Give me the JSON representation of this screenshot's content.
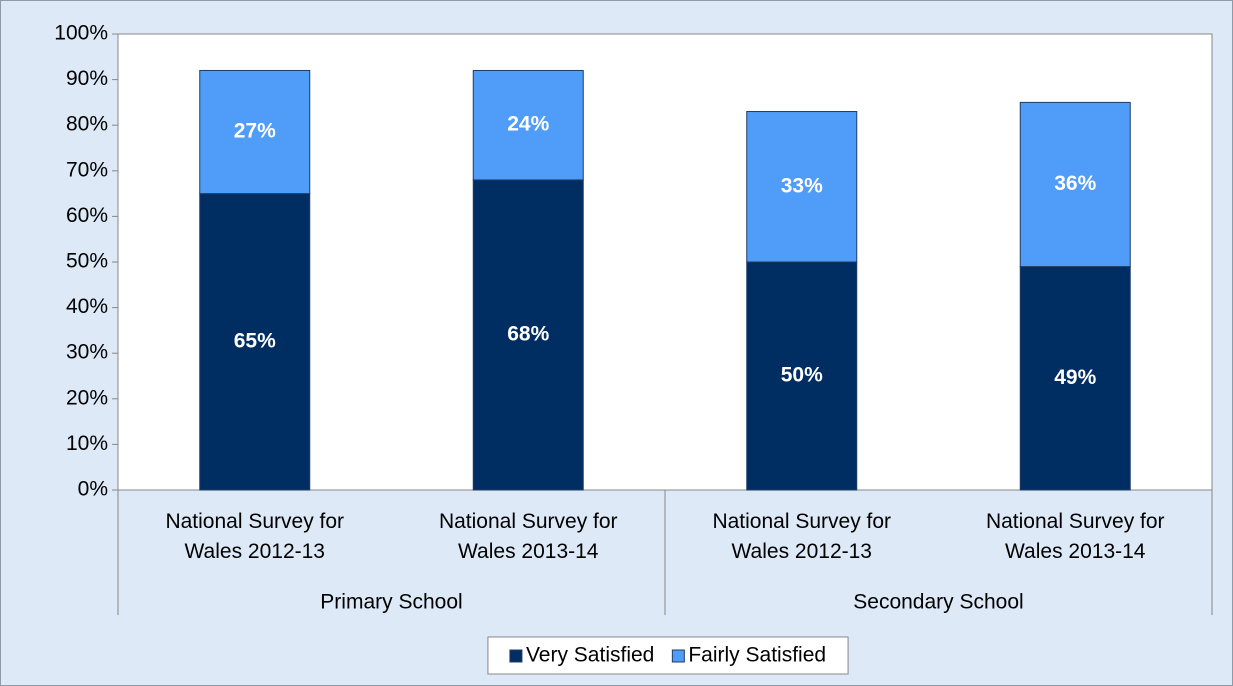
{
  "chart_data": {
    "type": "stacked-bar",
    "categories": [
      "National Survey for Wales 2012-13",
      "National Survey for Wales 2013-14",
      "National Survey for Wales 2012-13",
      "National Survey for Wales 2013-14"
    ],
    "group_labels": [
      "Primary School",
      "Secondary School"
    ],
    "series": [
      {
        "name": "Very Satisfied",
        "color": "#002d62",
        "values": [
          65,
          68,
          50,
          49
        ],
        "value_labels": [
          "65%",
          "68%",
          "50%",
          "49%"
        ]
      },
      {
        "name": "Fairly Satisfied",
        "color": "#4f9cf9",
        "values": [
          27,
          24,
          33,
          36
        ],
        "value_labels": [
          "27%",
          "24%",
          "33%",
          "36%"
        ]
      }
    ],
    "ylim": [
      0,
      100
    ],
    "yticks": [
      {
        "value": 0,
        "label": "0%"
      },
      {
        "value": 10,
        "label": "10%"
      },
      {
        "value": 20,
        "label": "20%"
      },
      {
        "value": 30,
        "label": "30%"
      },
      {
        "value": 40,
        "label": "40%"
      },
      {
        "value": 50,
        "label": "50%"
      },
      {
        "value": 60,
        "label": "60%"
      },
      {
        "value": 70,
        "label": "70%"
      },
      {
        "value": 80,
        "label": "80%"
      },
      {
        "value": 90,
        "label": "90%"
      },
      {
        "value": 100,
        "label": "100%"
      }
    ],
    "grid": false,
    "legend": "bottom"
  }
}
